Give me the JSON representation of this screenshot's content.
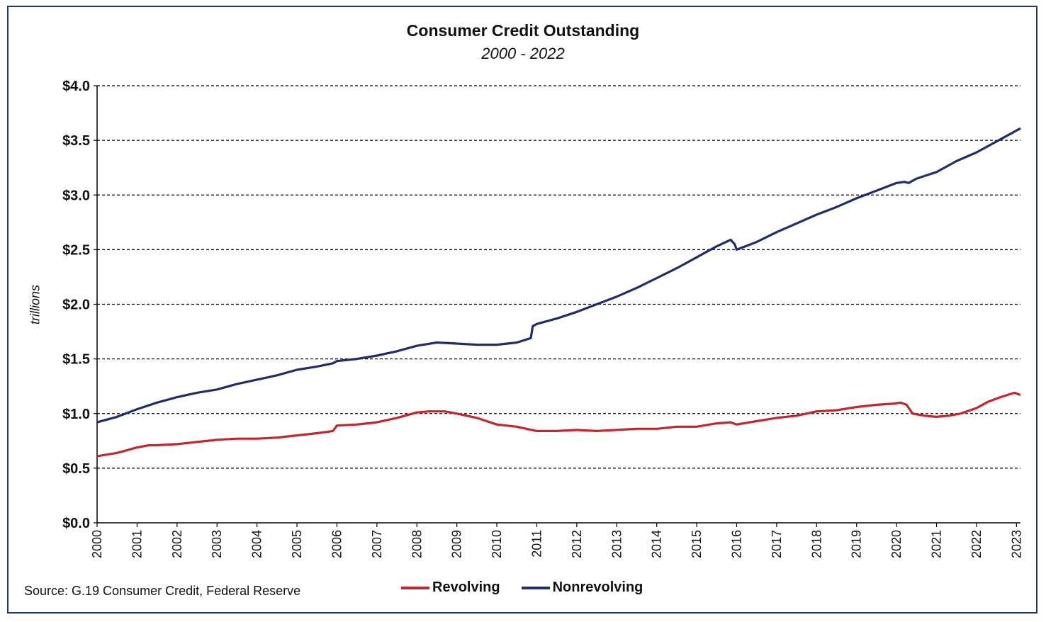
{
  "chart_data": {
    "type": "line",
    "title": "Consumer Credit Outstanding",
    "subtitle": "2000 - 2022",
    "ylabel": "trillions",
    "xlabel": "",
    "ylim": [
      0,
      4
    ],
    "xlim": [
      2000,
      2023.1
    ],
    "y_ticks": [
      0,
      0.5,
      1.0,
      1.5,
      2.0,
      2.5,
      3.0,
      3.5,
      4.0
    ],
    "y_tick_labels": [
      "$0.0",
      "$0.5",
      "$1.0",
      "$1.5",
      "$2.0",
      "$2.5",
      "$3.0",
      "$3.5",
      "$4.0"
    ],
    "x_ticks": [
      2000,
      2001,
      2002,
      2003,
      2004,
      2005,
      2006,
      2007,
      2008,
      2009,
      2010,
      2011,
      2012,
      2013,
      2014,
      2015,
      2016,
      2017,
      2018,
      2019,
      2020,
      2021,
      2022,
      2023
    ],
    "x_tick_labels": [
      "2000",
      "2001",
      "2002",
      "2003",
      "2004",
      "2005",
      "2006",
      "2007",
      "2008",
      "2009",
      "2010",
      "2011",
      "2012",
      "2013",
      "2014",
      "2015",
      "2016",
      "2017",
      "2018",
      "2019",
      "2020",
      "2021",
      "2022",
      "2023"
    ],
    "grid": "horizontal dashed",
    "legend_position": "bottom-center",
    "series": [
      {
        "name": "Revolving",
        "color": "#c0282d",
        "x": [
          2000.0,
          2000.5,
          2001.0,
          2001.3,
          2001.5,
          2002.0,
          2002.5,
          2003.0,
          2003.5,
          2004.0,
          2004.5,
          2005.0,
          2005.5,
          2005.9,
          2006.0,
          2006.5,
          2007.0,
          2007.5,
          2008.0,
          2008.3,
          2008.7,
          2009.0,
          2009.5,
          2010.0,
          2010.5,
          2011.0,
          2011.5,
          2012.0,
          2012.5,
          2013.0,
          2013.5,
          2014.0,
          2014.5,
          2015.0,
          2015.5,
          2015.85,
          2016.0,
          2016.5,
          2017.0,
          2017.5,
          2018.0,
          2018.5,
          2019.0,
          2019.5,
          2019.9,
          2020.1,
          2020.25,
          2020.4,
          2020.7,
          2021.0,
          2021.3,
          2021.6,
          2022.0,
          2022.3,
          2022.6,
          2022.95,
          2023.1
        ],
        "values": [
          0.61,
          0.64,
          0.69,
          0.71,
          0.71,
          0.72,
          0.74,
          0.76,
          0.77,
          0.77,
          0.78,
          0.8,
          0.82,
          0.84,
          0.89,
          0.9,
          0.92,
          0.96,
          1.01,
          1.02,
          1.02,
          1.0,
          0.96,
          0.9,
          0.88,
          0.84,
          0.84,
          0.85,
          0.84,
          0.85,
          0.86,
          0.86,
          0.88,
          0.88,
          0.91,
          0.92,
          0.9,
          0.93,
          0.96,
          0.98,
          1.02,
          1.03,
          1.06,
          1.08,
          1.09,
          1.1,
          1.08,
          1.0,
          0.98,
          0.97,
          0.98,
          1.0,
          1.05,
          1.11,
          1.15,
          1.19,
          1.17
        ]
      },
      {
        "name": "Nonrevolving",
        "color": "#1f2e6b",
        "x": [
          2000.0,
          2000.5,
          2001.0,
          2001.5,
          2001.9,
          2002.0,
          2002.5,
          2003.0,
          2003.5,
          2004.0,
          2004.5,
          2005.0,
          2005.5,
          2005.9,
          2006.0,
          2006.5,
          2007.0,
          2007.5,
          2008.0,
          2008.5,
          2009.0,
          2009.5,
          2010.0,
          2010.5,
          2010.85,
          2010.9,
          2011.0,
          2011.5,
          2012.0,
          2012.5,
          2013.0,
          2013.5,
          2014.0,
          2014.5,
          2015.0,
          2015.5,
          2015.85,
          2015.95,
          2016.0,
          2016.5,
          2017.0,
          2017.5,
          2018.0,
          2018.5,
          2019.0,
          2019.5,
          2020.0,
          2020.2,
          2020.3,
          2020.5,
          2021.0,
          2021.5,
          2022.0,
          2022.5,
          2022.9,
          2023.0,
          2023.1
        ],
        "values": [
          0.92,
          0.97,
          1.04,
          1.1,
          1.14,
          1.15,
          1.19,
          1.22,
          1.27,
          1.31,
          1.35,
          1.4,
          1.43,
          1.46,
          1.48,
          1.5,
          1.53,
          1.57,
          1.62,
          1.65,
          1.64,
          1.63,
          1.63,
          1.65,
          1.69,
          1.8,
          1.82,
          1.87,
          1.93,
          2.0,
          2.07,
          2.15,
          2.24,
          2.33,
          2.43,
          2.53,
          2.59,
          2.55,
          2.5,
          2.57,
          2.66,
          2.74,
          2.82,
          2.89,
          2.97,
          3.04,
          3.11,
          3.12,
          3.11,
          3.15,
          3.21,
          3.31,
          3.39,
          3.49,
          3.57,
          3.59,
          3.61
        ]
      }
    ]
  },
  "source_note": "Source: G.19 Consumer Credit, Federal Reserve"
}
